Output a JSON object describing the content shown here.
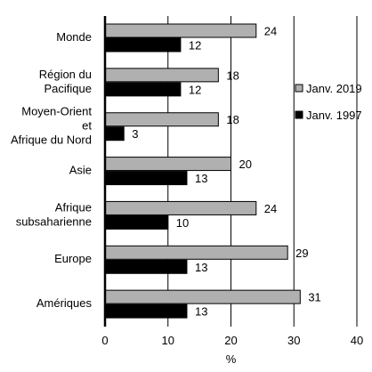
{
  "chart_data": {
    "type": "bar",
    "orientation": "horizontal",
    "categories": [
      [
        "Monde"
      ],
      [
        "Région du",
        "Pacifique"
      ],
      [
        "Moyen-Orient",
        "et",
        "Afrique du Nord"
      ],
      [
        "Asie"
      ],
      [
        "Afrique",
        "subsaharienne"
      ],
      [
        "Europe"
      ],
      [
        "Amériques"
      ]
    ],
    "series": [
      {
        "name": "Janv. 2019",
        "values": [
          24,
          18,
          18,
          20,
          24,
          29,
          31
        ],
        "color": "#b0b0b0"
      },
      {
        "name": "Janv. 1997",
        "values": [
          12,
          12,
          3,
          13,
          10,
          13,
          13
        ],
        "color": "#000000"
      }
    ],
    "xlabel": "%",
    "xlim": [
      0,
      40
    ],
    "xticks": [
      0,
      10,
      20,
      30,
      40
    ],
    "grid": "vertical",
    "legend_position": "right"
  }
}
